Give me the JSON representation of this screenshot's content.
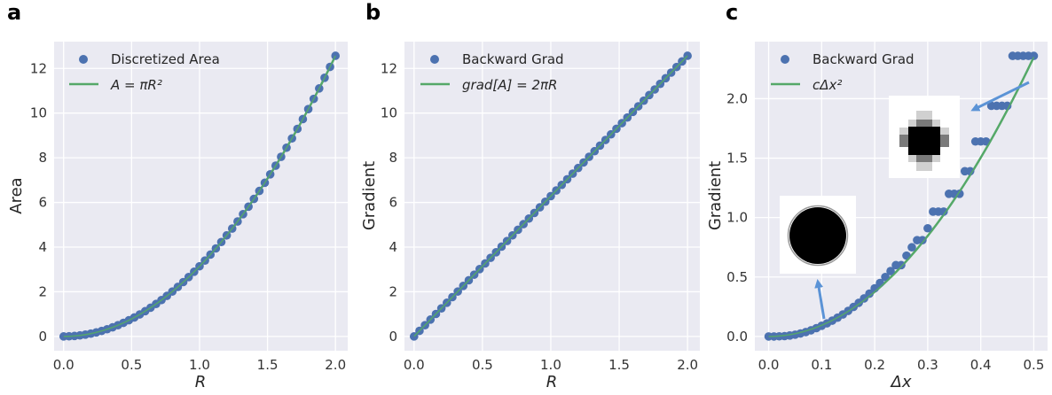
{
  "colors": {
    "background": "#eaeaf2",
    "grid": "#ffffff",
    "points": "#4c72b0",
    "line": "#55a868",
    "arrow": "#5b93d6"
  },
  "chart_data": [
    {
      "type": "scatter",
      "panel_label": "a",
      "xlabel": "R",
      "ylabel": "Area",
      "xlim": [
        -0.07,
        2.09
      ],
      "ylim": [
        -0.64,
        13.2
      ],
      "xticks": [
        0.0,
        0.5,
        1.0,
        1.5,
        2.0
      ],
      "xtick_labels": [
        "0.0",
        "0.5",
        "1.0",
        "1.5",
        "2.0"
      ],
      "yticks": [
        0,
        2,
        4,
        6,
        8,
        10,
        12
      ],
      "ytick_labels": [
        "0",
        "2",
        "4",
        "6",
        "8",
        "10",
        "12"
      ],
      "legend": {
        "position": "top-left",
        "entries": [
          "Discretized Area",
          "A = πR²"
        ]
      },
      "grid": true,
      "series": [
        {
          "name": "Discretized Area",
          "kind": "points",
          "x_start": 0.0,
          "x_end": 2.0,
          "count": 51,
          "formula": "pi*x^2"
        },
        {
          "name": "A = πR²",
          "kind": "line",
          "x_start": 0.0,
          "x_end": 2.0,
          "formula": "pi*x^2"
        }
      ]
    },
    {
      "type": "scatter",
      "panel_label": "b",
      "xlabel": "R",
      "ylabel": "Gradient",
      "xlim": [
        -0.07,
        2.09
      ],
      "ylim": [
        -0.64,
        13.2
      ],
      "xticks": [
        0.0,
        0.5,
        1.0,
        1.5,
        2.0
      ],
      "xtick_labels": [
        "0.0",
        "0.5",
        "1.0",
        "1.5",
        "2.0"
      ],
      "yticks": [
        0,
        2,
        4,
        6,
        8,
        10,
        12
      ],
      "ytick_labels": [
        "0",
        "2",
        "4",
        "6",
        "8",
        "10",
        "12"
      ],
      "legend": {
        "position": "top-left",
        "entries": [
          "Backward Grad",
          "grad[A] = 2πR"
        ]
      },
      "grid": true,
      "series": [
        {
          "name": "Backward Grad",
          "kind": "points",
          "x_start": 0.0,
          "x_end": 2.0,
          "count": 51,
          "formula": "2*pi*x"
        },
        {
          "name": "grad[A] = 2πR",
          "kind": "line",
          "x_start": 0.0,
          "x_end": 2.0,
          "formula": "2*pi*x"
        }
      ]
    },
    {
      "type": "scatter",
      "panel_label": "c",
      "xlabel": "Δx",
      "ylabel": "Gradient",
      "xlim": [
        -0.026,
        0.526
      ],
      "ylim": [
        -0.12,
        2.48
      ],
      "xticks": [
        0.0,
        0.1,
        0.2,
        0.3,
        0.4,
        0.5
      ],
      "xtick_labels": [
        "0.0",
        "0.1",
        "0.2",
        "0.3",
        "0.4",
        "0.5"
      ],
      "yticks": [
        0.0,
        0.5,
        1.0,
        1.5,
        2.0
      ],
      "ytick_labels": [
        "0.0",
        "0.5",
        "1.0",
        "1.5",
        "2.0"
      ],
      "legend": {
        "position": "top-left",
        "entries": [
          "Backward Grad",
          "cΔx²"
        ]
      },
      "grid": true,
      "series": [
        {
          "name": "Backward Grad",
          "kind": "points",
          "x": [
            0.0,
            0.01,
            0.02,
            0.03,
            0.04,
            0.05,
            0.06,
            0.07,
            0.08,
            0.09,
            0.1,
            0.11,
            0.12,
            0.13,
            0.14,
            0.15,
            0.16,
            0.17,
            0.18,
            0.19,
            0.2,
            0.21,
            0.22,
            0.23,
            0.24,
            0.25,
            0.26,
            0.27,
            0.28,
            0.29,
            0.3,
            0.31,
            0.32,
            0.33,
            0.34,
            0.35,
            0.36,
            0.37,
            0.38,
            0.39,
            0.4,
            0.41,
            0.42,
            0.43,
            0.44,
            0.45,
            0.46,
            0.47,
            0.48,
            0.49,
            0.5
          ],
          "y": [
            0.0,
            0.0,
            0.001,
            0.003,
            0.008,
            0.015,
            0.025,
            0.037,
            0.052,
            0.07,
            0.09,
            0.11,
            0.133,
            0.158,
            0.185,
            0.215,
            0.248,
            0.283,
            0.32,
            0.36,
            0.405,
            0.45,
            0.5,
            0.55,
            0.6,
            0.6,
            0.68,
            0.75,
            0.81,
            0.81,
            0.91,
            1.05,
            1.05,
            1.05,
            1.2,
            1.2,
            1.2,
            1.39,
            1.39,
            1.64,
            1.64,
            1.64,
            1.94,
            1.94,
            1.94,
            1.94,
            2.36,
            2.36,
            2.36,
            2.36,
            2.36
          ]
        },
        {
          "name": "cΔx²",
          "kind": "line",
          "x_start": 0.0,
          "x_end": 0.5,
          "formula": "9.4*x^2"
        }
      ],
      "insets": [
        {
          "name": "disc-large-inset",
          "description_icon": "pixelated-disk"
        },
        {
          "name": "disc-small-inset",
          "description_icon": "coarse-pixel-cross"
        }
      ]
    }
  ]
}
